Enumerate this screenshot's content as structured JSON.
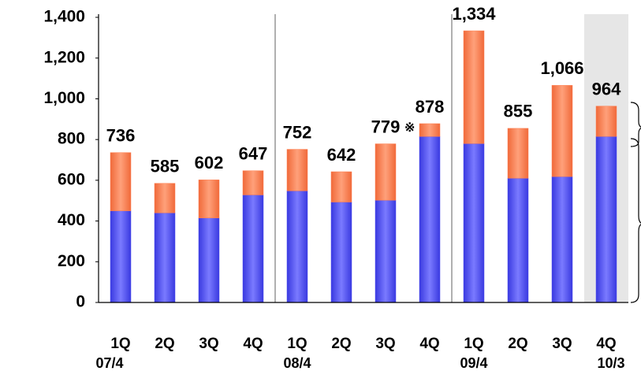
{
  "chart_data": {
    "type": "stacked_bar",
    "categories": [
      "1Q",
      "2Q",
      "3Q",
      "4Q",
      "1Q",
      "2Q",
      "3Q",
      "4Q",
      "1Q",
      "2Q",
      "3Q",
      "4Q"
    ],
    "period_labels": [
      "07/4",
      null,
      null,
      null,
      "08/4",
      null,
      null,
      null,
      "09/4",
      null,
      null,
      "10/3"
    ],
    "series": [
      {
        "color": "#4b4bf0",
        "values": [
          450,
          440,
          415,
          528,
          548,
          493,
          502,
          815,
          780,
          610,
          618,
          815
        ]
      },
      {
        "color": "#ff7f50",
        "values": [
          286,
          145,
          187,
          119,
          204,
          149,
          277,
          63,
          554,
          245,
          448,
          149
        ]
      }
    ],
    "totals": [
      736,
      585,
      602,
      647,
      752,
      642,
      779,
      878,
      1334,
      855,
      1066,
      964
    ],
    "total_labels": [
      "736",
      "585",
      "602",
      "647",
      "752",
      "642",
      "779",
      "878",
      "1,334",
      "855",
      "1,066",
      "964"
    ],
    "note_mark": "※",
    "ylim": [
      0,
      1400
    ],
    "yticks": [
      0,
      200,
      400,
      600,
      800,
      {
        "value": 1000,
        "label": "1,000"
      },
      {
        "value": 1200,
        "label": "1,200"
      },
      {
        "value": 1400,
        "label": "1,400"
      }
    ]
  }
}
